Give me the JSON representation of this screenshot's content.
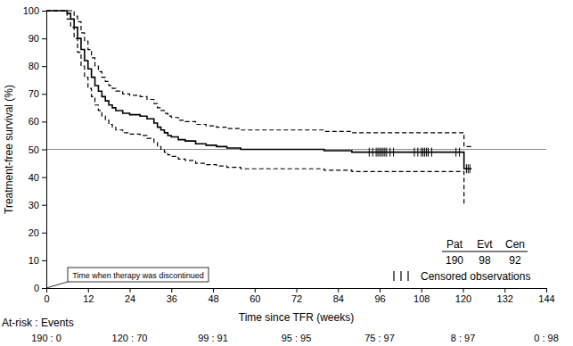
{
  "chart_data": {
    "type": "step",
    "x_label": "Time since TFR (weeks)",
    "y_label": "Treatment-free survival (%)",
    "xlim": [
      0,
      144
    ],
    "xticks": [
      0,
      12,
      24,
      36,
      48,
      60,
      72,
      84,
      96,
      108,
      120,
      132,
      144
    ],
    "ylim": [
      0,
      100
    ],
    "yticks": [
      0,
      10,
      20,
      30,
      40,
      50,
      60,
      70,
      80,
      90,
      100
    ],
    "grid": false,
    "reference_line": 50,
    "series": [
      {
        "color": "#000000",
        "line_style": "solid",
        "marker": "none",
        "x": [
          0,
          6,
          7,
          8,
          9,
          10,
          11,
          12,
          13,
          14,
          15,
          16,
          17,
          18,
          19,
          20,
          22,
          24,
          27,
          29,
          31,
          32,
          33,
          34,
          35,
          36,
          38,
          40,
          43,
          46,
          49,
          52,
          56,
          66,
          80,
          88,
          120.3,
          122.5
        ],
        "values": [
          100,
          99,
          97,
          94,
          90,
          86,
          82,
          79,
          76,
          73,
          71,
          69,
          67.5,
          66,
          65,
          64,
          63,
          62.5,
          62,
          61,
          59.5,
          58,
          57,
          56,
          55,
          54.5,
          53.5,
          53,
          52,
          51.5,
          51,
          50.5,
          50,
          50,
          49.5,
          49,
          43,
          43
        ]
      },
      {
        "color": "#000000",
        "line_style": "dashed",
        "marker": "none",
        "x": [
          0,
          7,
          8,
          9,
          10,
          11,
          12,
          13,
          14,
          15,
          16,
          17,
          18,
          19,
          20,
          22,
          24,
          27,
          29,
          31,
          32,
          33,
          34,
          35,
          36,
          38,
          40,
          43,
          46,
          49,
          52,
          56,
          66,
          80,
          88,
          120.3,
          122.5
        ],
        "values": [
          100,
          100,
          98,
          96,
          92,
          89,
          86,
          83,
          80,
          78,
          76,
          74.5,
          73,
          72,
          71,
          70,
          69.5,
          69,
          68,
          66.5,
          65,
          64,
          63,
          62,
          61.5,
          60.5,
          60,
          59,
          58.5,
          58,
          57.5,
          57,
          57,
          56.5,
          56,
          51,
          51
        ]
      },
      {
        "color": "#000000",
        "line_style": "dashed",
        "marker": "none",
        "x": [
          0,
          6,
          7,
          8,
          9,
          10,
          11,
          12,
          13,
          14,
          15,
          16,
          17,
          18,
          19,
          20,
          22,
          24,
          27,
          29,
          31,
          32,
          33,
          34,
          35,
          36,
          38,
          40,
          43,
          46,
          49,
          52,
          56,
          66,
          80,
          88,
          120.3,
          120.5
        ],
        "values": [
          100,
          97,
          94,
          90,
          85,
          80,
          76,
          72,
          69,
          66,
          64,
          62,
          60.5,
          59,
          58,
          57,
          56,
          55.5,
          55,
          54,
          52.5,
          51,
          50,
          49,
          48,
          47.5,
          46.5,
          46,
          45,
          44.5,
          44,
          43.5,
          43,
          43,
          42.5,
          42,
          30,
          30
        ]
      },
      {
        "name": "Censored observations",
        "color": "#000000",
        "line_style": "none",
        "marker": "|",
        "x": [
          93,
          94,
          95,
          95.5,
          96,
          96.5,
          97,
          97.5,
          98,
          99,
          100,
          106,
          107,
          108,
          108.5,
          109,
          109.5,
          110,
          111,
          118,
          119,
          121,
          121.5,
          122
        ],
        "values": [
          49,
          49,
          49,
          49,
          49,
          49,
          49,
          49,
          49,
          49,
          49,
          49,
          49,
          49,
          49,
          49,
          49,
          49,
          49,
          49,
          49,
          43,
          43,
          43
        ]
      }
    ],
    "summary": {
      "headers": [
        "Pat",
        "Evt",
        "Cen"
      ],
      "values": [
        190,
        98,
        92
      ]
    },
    "annotations": [
      {
        "text": "Time when therapy was discontinued",
        "x": 0
      }
    ],
    "at_risk": {
      "label": "At-risk : Events",
      "x": [
        0,
        24,
        48,
        72,
        96,
        120,
        144
      ],
      "labels": [
        "190 : 0",
        "120 : 70",
        "99 : 91",
        "95 : 95",
        "75 : 97",
        "8 : 97",
        "0 : 98"
      ]
    }
  }
}
